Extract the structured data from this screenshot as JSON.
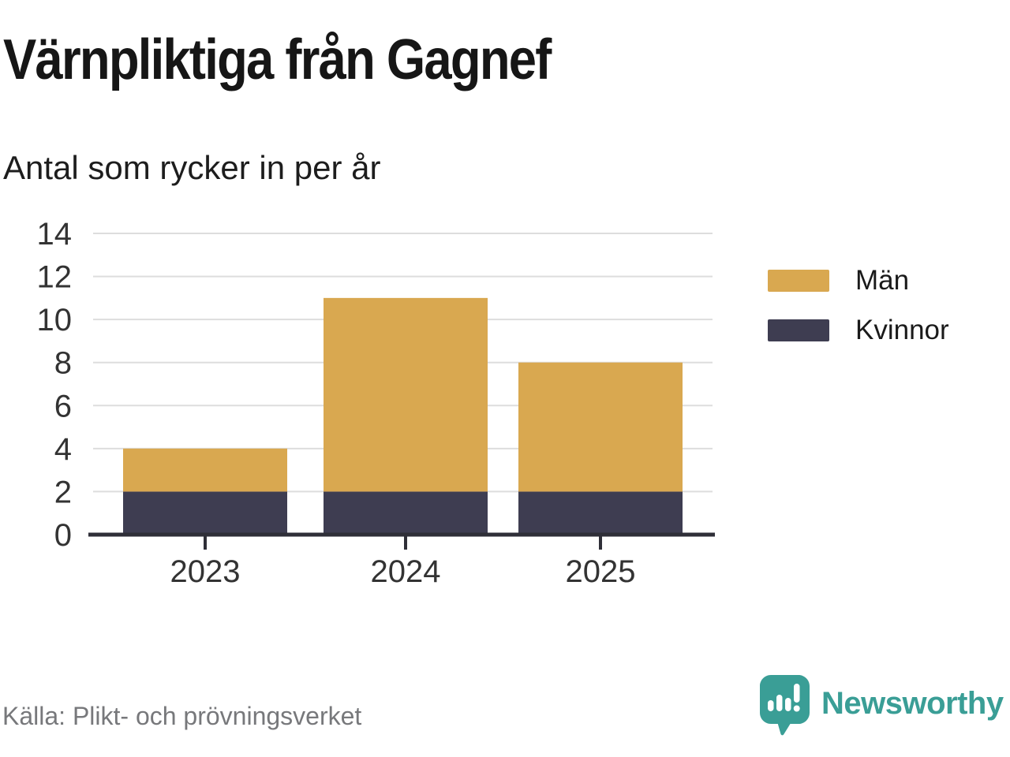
{
  "chart_data": {
    "type": "bar",
    "stacked": true,
    "title": "Värnpliktiga från Gagnef",
    "subtitle": "Antal som rycker in per år",
    "categories": [
      "2023",
      "2024",
      "2025"
    ],
    "series": [
      {
        "name": "Kvinnor",
        "color": "#3e3d51",
        "values": [
          2,
          2,
          2
        ]
      },
      {
        "name": "Män",
        "color": "#d9a850",
        "values": [
          2,
          9,
          6
        ]
      }
    ],
    "stack_totals": [
      4,
      11,
      8
    ],
    "ylim": [
      0,
      14
    ],
    "yticks": [
      0,
      2,
      4,
      6,
      8,
      10,
      12,
      14
    ],
    "grid": true,
    "legend": {
      "position": "right",
      "items": [
        {
          "label": "Män",
          "color": "#d9a850"
        },
        {
          "label": "Kvinnor",
          "color": "#3e3d51"
        }
      ]
    },
    "style": {
      "grid_color": "#dddddd",
      "axis_color": "#2f2f38",
      "tick_label_color": "#333333"
    }
  },
  "footer": {
    "source": "Källa: Plikt- och prövningsverket",
    "brand": "Newsworthy",
    "brand_color": "#3a9e96",
    "logo_icon": "speech-bubble-bar-chart-icon"
  }
}
